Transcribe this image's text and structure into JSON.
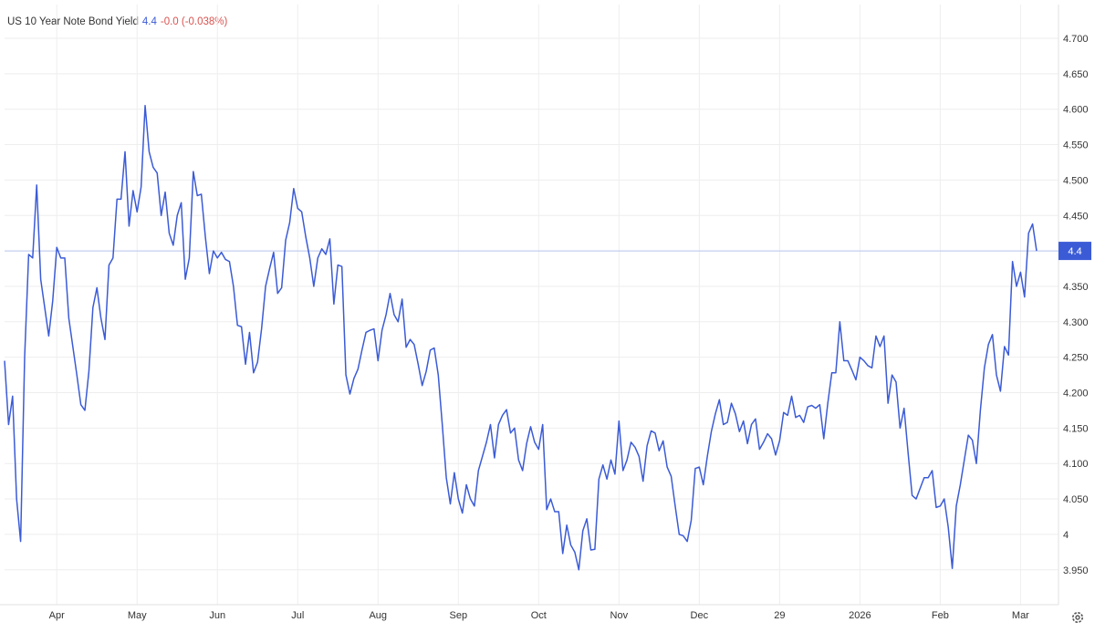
{
  "header": {
    "title": "US 10 Year Note Bond Yield",
    "last": "4.4",
    "change": "-0.0 (-0.038%)"
  },
  "colors": {
    "line": "#3b5bd6",
    "change_negative": "#d9534f",
    "grid": "#eeeeee",
    "current_line": "#b7c3ee"
  },
  "chart_data": {
    "type": "line",
    "title": "US 10 Year Note Bond Yield",
    "xlabel": "",
    "ylabel": "",
    "ylim": [
      3.91,
      4.74
    ],
    "grid": true,
    "current_value": 4.4,
    "current_label": "4.4",
    "y_ticks": [
      {
        "v": 4.7,
        "label": "4.700"
      },
      {
        "v": 4.65,
        "label": "4.650"
      },
      {
        "v": 4.6,
        "label": "4.600"
      },
      {
        "v": 4.55,
        "label": "4.550"
      },
      {
        "v": 4.5,
        "label": "4.500"
      },
      {
        "v": 4.45,
        "label": "4.450"
      },
      {
        "v": 4.35,
        "label": "4.350"
      },
      {
        "v": 4.3,
        "label": "4.300"
      },
      {
        "v": 4.25,
        "label": "4.250"
      },
      {
        "v": 4.2,
        "label": "4.200"
      },
      {
        "v": 4.15,
        "label": "4.150"
      },
      {
        "v": 4.1,
        "label": "4.100"
      },
      {
        "v": 4.05,
        "label": "4.050"
      },
      {
        "v": 4.0,
        "label": "4"
      },
      {
        "v": 3.95,
        "label": "3.950"
      }
    ],
    "x_ticks": [
      {
        "index": 13,
        "label": "Apr"
      },
      {
        "index": 33,
        "label": "May"
      },
      {
        "index": 53,
        "label": "Jun"
      },
      {
        "index": 73,
        "label": "Jul"
      },
      {
        "index": 93,
        "label": "Aug"
      },
      {
        "index": 113,
        "label": "Sep"
      },
      {
        "index": 133,
        "label": "Oct"
      },
      {
        "index": 153,
        "label": "Nov"
      },
      {
        "index": 173,
        "label": "Dec"
      },
      {
        "index": 193,
        "label": "29"
      },
      {
        "index": 213,
        "label": "2026"
      },
      {
        "index": 233,
        "label": "Feb"
      },
      {
        "index": 253,
        "label": "Mar"
      }
    ],
    "values": [
      4.245,
      4.155,
      4.195,
      4.05,
      3.99,
      4.25,
      4.395,
      4.39,
      4.493,
      4.36,
      4.32,
      4.28,
      4.33,
      4.405,
      4.39,
      4.39,
      4.305,
      4.265,
      4.225,
      4.183,
      4.175,
      4.23,
      4.32,
      4.348,
      4.305,
      4.275,
      4.38,
      4.39,
      4.473,
      4.473,
      4.54,
      4.435,
      4.485,
      4.455,
      4.49,
      4.605,
      4.54,
      4.518,
      4.51,
      4.45,
      4.483,
      4.425,
      4.408,
      4.45,
      4.468,
      4.36,
      4.39,
      4.512,
      4.478,
      4.48,
      4.42,
      4.368,
      4.4,
      4.39,
      4.398,
      4.388,
      4.385,
      4.35,
      4.295,
      4.293,
      4.24,
      4.285,
      4.228,
      4.243,
      4.29,
      4.35,
      4.375,
      4.398,
      4.34,
      4.348,
      4.415,
      4.44,
      4.488,
      4.46,
      4.455,
      4.42,
      4.39,
      4.35,
      4.39,
      4.403,
      4.395,
      4.417,
      4.325,
      4.38,
      4.378,
      4.225,
      4.198,
      4.22,
      4.233,
      4.26,
      4.285,
      4.288,
      4.29,
      4.245,
      4.288,
      4.31,
      4.34,
      4.31,
      4.3,
      4.332,
      4.264,
      4.275,
      4.268,
      4.24,
      4.21,
      4.23,
      4.26,
      4.263,
      4.225,
      4.155,
      4.08,
      4.043,
      4.087,
      4.05,
      4.03,
      4.07,
      4.05,
      4.04,
      4.09,
      4.11,
      4.13,
      4.155,
      4.108,
      4.155,
      4.168,
      4.176,
      4.143,
      4.15,
      4.105,
      4.09,
      4.128,
      4.152,
      4.13,
      4.12,
      4.155,
      4.035,
      4.05,
      4.032,
      4.032,
      3.973,
      4.013,
      3.985,
      3.975,
      3.95,
      4.005,
      4.022,
      3.978,
      3.979,
      4.078,
      4.098,
      4.078,
      4.105,
      4.085,
      4.16,
      4.09,
      4.105,
      4.13,
      4.123,
      4.11,
      4.075,
      4.125,
      4.146,
      4.143,
      4.118,
      4.132,
      4.095,
      4.082,
      4.04,
      4.0,
      3.998,
      3.99,
      4.02,
      4.093,
      4.095,
      4.07,
      4.11,
      4.145,
      4.17,
      4.19,
      4.155,
      4.158,
      4.185,
      4.17,
      4.145,
      4.16,
      4.128,
      4.155,
      4.163,
      4.12,
      4.13,
      4.142,
      4.135,
      4.112,
      4.132,
      4.172,
      4.168,
      4.195,
      4.165,
      4.168,
      4.158,
      4.18,
      4.182,
      4.178,
      4.183,
      4.135,
      4.185,
      4.228,
      4.228,
      4.3,
      4.245,
      4.245,
      4.232,
      4.218,
      4.25,
      4.245,
      4.238,
      4.235,
      4.28,
      4.265,
      4.28,
      4.185,
      4.225,
      4.215,
      4.15,
      4.178,
      4.115,
      4.055,
      4.05,
      4.065,
      4.08,
      4.08,
      4.09,
      4.038,
      4.04,
      4.05,
      4.01,
      3.952,
      4.04,
      4.07,
      4.105,
      4.14,
      4.133,
      4.1,
      4.175,
      4.235,
      4.268,
      4.282,
      4.225,
      4.202,
      4.265,
      4.253,
      4.385,
      4.35,
      4.37,
      4.335,
      4.425,
      4.438,
      4.4
    ]
  }
}
